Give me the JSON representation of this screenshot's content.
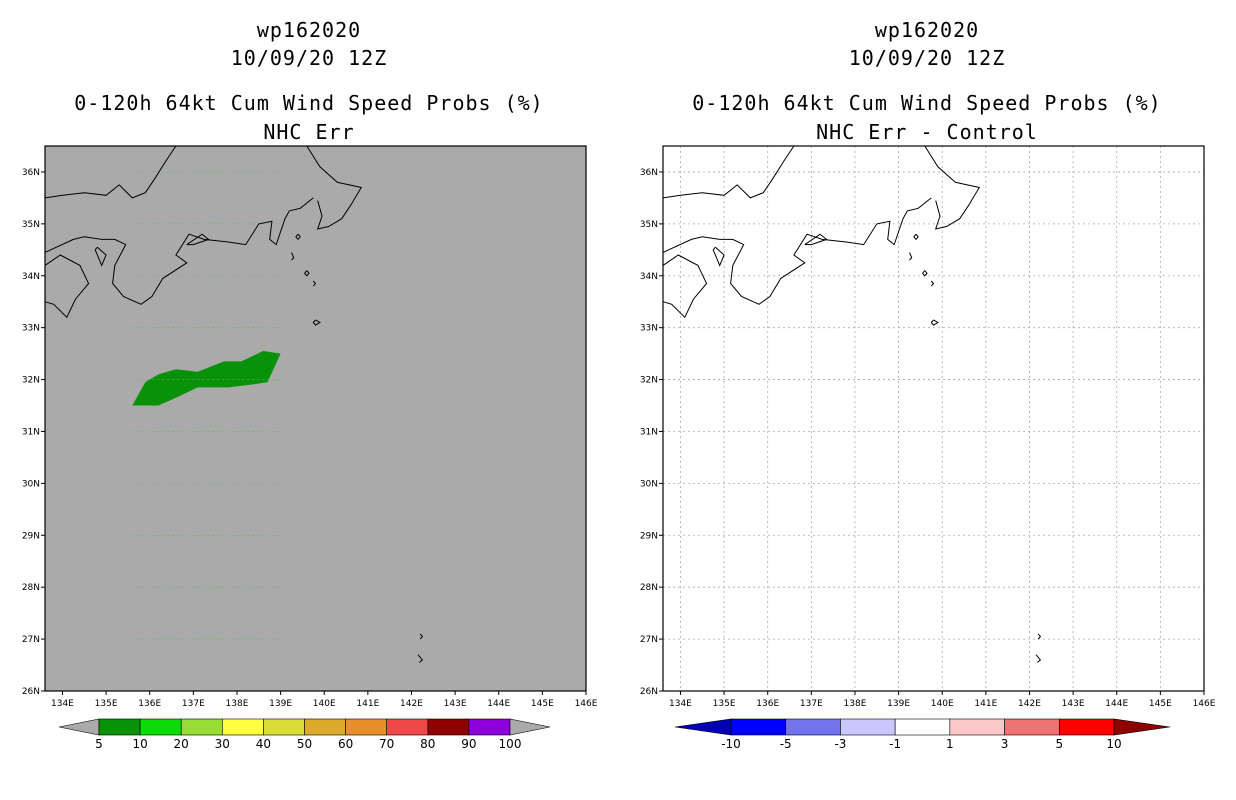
{
  "left": {
    "title_line1": "wp162020",
    "title_line2": "10/09/20 12Z",
    "title_line3": "0-120h 64kt Cum Wind Speed Probs (%)",
    "title_line4": "NHC Err",
    "background_color": "#aaaaaa",
    "colorbar": {
      "labels": [
        "5",
        "10",
        "20",
        "30",
        "40",
        "50",
        "60",
        "70",
        "80",
        "90",
        "100"
      ],
      "colors": [
        "#099109",
        "#09dc09",
        "#98dc37",
        "#ffff40",
        "#dcdc37",
        "#dcaa2b",
        "#e88e2b",
        "#f04848",
        "#8e0000",
        "#8e00dc"
      ],
      "under_color": "#aaaaaa",
      "over_color": "#aaaaaa"
    },
    "probability_area": {
      "value_band": "5-10",
      "color": "#099109",
      "polygon_lonlat": [
        [
          135.6,
          31.5
        ],
        [
          135.9,
          31.5
        ],
        [
          136.2,
          31.5
        ],
        [
          136.6,
          31.65
        ],
        [
          137.1,
          31.85
        ],
        [
          137.8,
          31.85
        ],
        [
          138.3,
          31.9
        ],
        [
          138.7,
          31.95
        ],
        [
          139.0,
          32.5
        ],
        [
          138.6,
          32.55
        ],
        [
          138.1,
          32.35
        ],
        [
          137.7,
          32.35
        ],
        [
          137.1,
          32.15
        ],
        [
          136.6,
          32.2
        ],
        [
          136.2,
          32.1
        ],
        [
          135.9,
          31.95
        ]
      ]
    }
  },
  "right": {
    "title_line1": "wp162020",
    "title_line2": "10/09/20 12Z",
    "title_line3": "0-120h 64kt Cum Wind Speed Probs (%)",
    "title_line4": "NHC Err - Control",
    "background_color": "#ffffff",
    "colorbar": {
      "labels": [
        "-10",
        "-5",
        "-3",
        "-1",
        "1",
        "3",
        "5",
        "10"
      ],
      "colors": [
        "#0000ff",
        "#7373f0",
        "#c8c8ff",
        "#ffffff",
        "#ffc8c8",
        "#f07373",
        "#ff0000"
      ],
      "under_color": "#0000b4",
      "over_color": "#8e0000"
    }
  },
  "map": {
    "lon_range": [
      133.6,
      146.0
    ],
    "lat_range": [
      26.0,
      36.5
    ],
    "lat_ticks": [
      "26N",
      "27N",
      "28N",
      "29N",
      "30N",
      "31N",
      "32N",
      "33N",
      "34N",
      "35N",
      "36N"
    ],
    "lon_ticks": [
      "134E",
      "135E",
      "136E",
      "137E",
      "138E",
      "139E",
      "140E",
      "141E",
      "142E",
      "143E",
      "144E",
      "145E",
      "146E"
    ],
    "coastlines_lonlat": [
      [
        [
          133.6,
          35.5
        ],
        [
          134.0,
          35.55
        ],
        [
          134.5,
          35.6
        ],
        [
          135.0,
          35.55
        ],
        [
          135.3,
          35.75
        ],
        [
          135.6,
          35.5
        ],
        [
          135.9,
          35.6
        ],
        [
          136.1,
          35.85
        ],
        [
          136.4,
          36.25
        ],
        [
          136.6,
          36.5
        ]
      ],
      [
        [
          139.6,
          36.5
        ],
        [
          139.9,
          36.1
        ],
        [
          140.3,
          35.8
        ],
        [
          140.85,
          35.7
        ],
        [
          140.6,
          35.35
        ],
        [
          140.4,
          35.1
        ],
        [
          140.1,
          34.95
        ],
        [
          139.85,
          34.9
        ],
        [
          139.95,
          35.15
        ],
        [
          139.85,
          35.45
        ]
      ],
      [
        [
          139.75,
          35.5
        ],
        [
          139.45,
          35.3
        ],
        [
          139.2,
          35.25
        ],
        [
          139.1,
          35.1
        ],
        [
          139.0,
          34.85
        ],
        [
          138.9,
          34.6
        ],
        [
          138.75,
          34.7
        ],
        [
          138.8,
          35.05
        ],
        [
          138.5,
          35.0
        ],
        [
          138.2,
          34.6
        ],
        [
          137.8,
          34.65
        ],
        [
          137.25,
          34.7
        ],
        [
          136.9,
          34.8
        ],
        [
          136.6,
          34.4
        ],
        [
          136.85,
          34.25
        ],
        [
          136.3,
          33.95
        ],
        [
          136.05,
          33.6
        ],
        [
          135.8,
          33.45
        ],
        [
          135.4,
          33.6
        ],
        [
          135.15,
          33.85
        ],
        [
          135.2,
          34.2
        ],
        [
          135.45,
          34.6
        ],
        [
          135.2,
          34.7
        ],
        [
          134.9,
          34.7
        ],
        [
          134.5,
          34.75
        ],
        [
          134.25,
          34.7
        ],
        [
          133.6,
          34.45
        ]
      ],
      [
        [
          136.85,
          34.6
        ],
        [
          137.2,
          34.8
        ],
        [
          137.35,
          34.7
        ],
        [
          137.0,
          34.6
        ],
        [
          136.85,
          34.6
        ]
      ],
      [
        [
          133.6,
          34.2
        ],
        [
          133.95,
          34.4
        ],
        [
          134.4,
          34.2
        ],
        [
          134.6,
          33.85
        ],
        [
          134.3,
          33.55
        ],
        [
          134.1,
          33.2
        ],
        [
          133.8,
          33.45
        ],
        [
          133.6,
          33.5
        ]
      ],
      [
        [
          134.8,
          34.55
        ],
        [
          135.0,
          34.4
        ],
        [
          134.9,
          34.2
        ],
        [
          134.75,
          34.5
        ],
        [
          134.8,
          34.55
        ]
      ],
      [
        [
          139.4,
          34.8
        ],
        [
          139.45,
          34.75
        ],
        [
          139.4,
          34.7
        ],
        [
          139.35,
          34.75
        ],
        [
          139.4,
          34.8
        ]
      ],
      [
        [
          139.25,
          34.45
        ],
        [
          139.3,
          34.35
        ],
        [
          139.25,
          34.3
        ]
      ],
      [
        [
          139.6,
          34.1
        ],
        [
          139.65,
          34.05
        ],
        [
          139.6,
          34.0
        ],
        [
          139.55,
          34.05
        ],
        [
          139.6,
          34.1
        ]
      ],
      [
        [
          139.75,
          33.9
        ],
        [
          139.8,
          33.85
        ],
        [
          139.75,
          33.8
        ]
      ],
      [
        [
          139.8,
          33.15
        ],
        [
          139.9,
          33.1
        ],
        [
          139.8,
          33.05
        ],
        [
          139.75,
          33.1
        ],
        [
          139.8,
          33.15
        ]
      ],
      [
        [
          142.2,
          27.1
        ],
        [
          142.25,
          27.05
        ],
        [
          142.2,
          27.0
        ]
      ],
      [
        [
          142.15,
          26.7
        ],
        [
          142.25,
          26.6
        ],
        [
          142.18,
          26.55
        ]
      ]
    ]
  }
}
